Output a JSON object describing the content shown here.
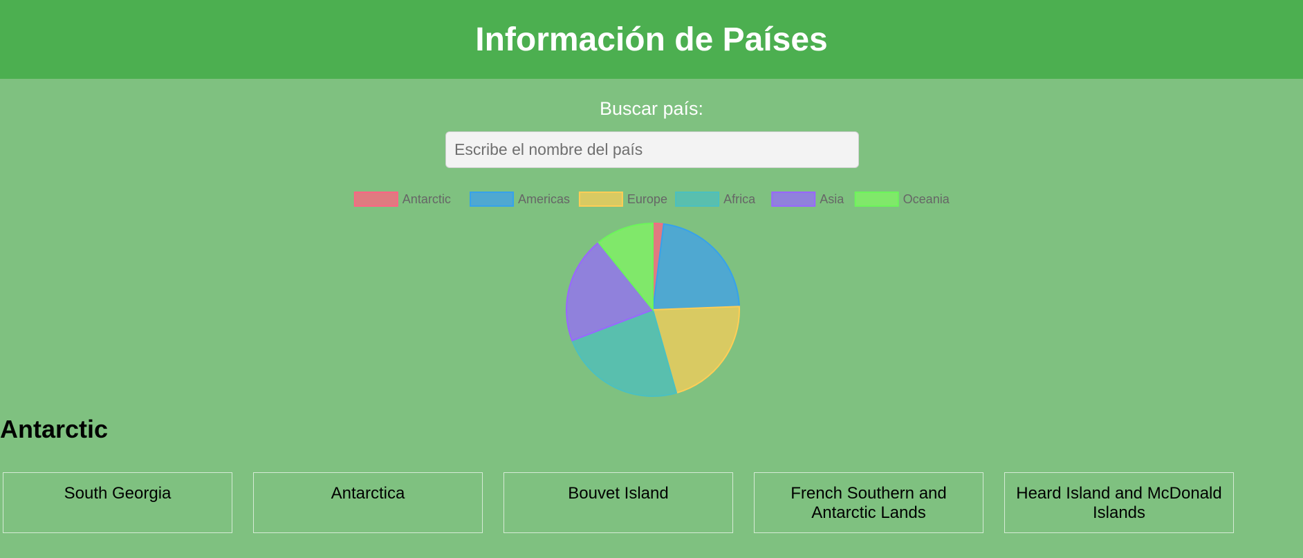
{
  "header": {
    "title": "Información de Países"
  },
  "search": {
    "label": "Buscar país:",
    "placeholder": "Escribe el nombre del país"
  },
  "chart_data": {
    "type": "pie",
    "categories": [
      "Antarctic",
      "Americas",
      "Europe",
      "Africa",
      "Asia",
      "Oceania"
    ],
    "values": [
      5,
      56,
      53,
      59,
      50,
      27
    ],
    "colors": [
      "#e07a80",
      "#4fa8d1",
      "#d9ca62",
      "#59bfae",
      "#9081dc",
      "#80e86a"
    ],
    "border_colors": [
      "#ff6384",
      "#36a2eb",
      "#ffce56",
      "#4bc0c0",
      "#9966ff",
      "#6cf55a"
    ],
    "legend_position": "top"
  },
  "region": {
    "name": "Antarctic",
    "countries": [
      "South Georgia",
      "Antarctica",
      "Bouvet Island",
      "French Southern and Antarctic Lands",
      "Heard Island and McDonald Islands"
    ]
  }
}
